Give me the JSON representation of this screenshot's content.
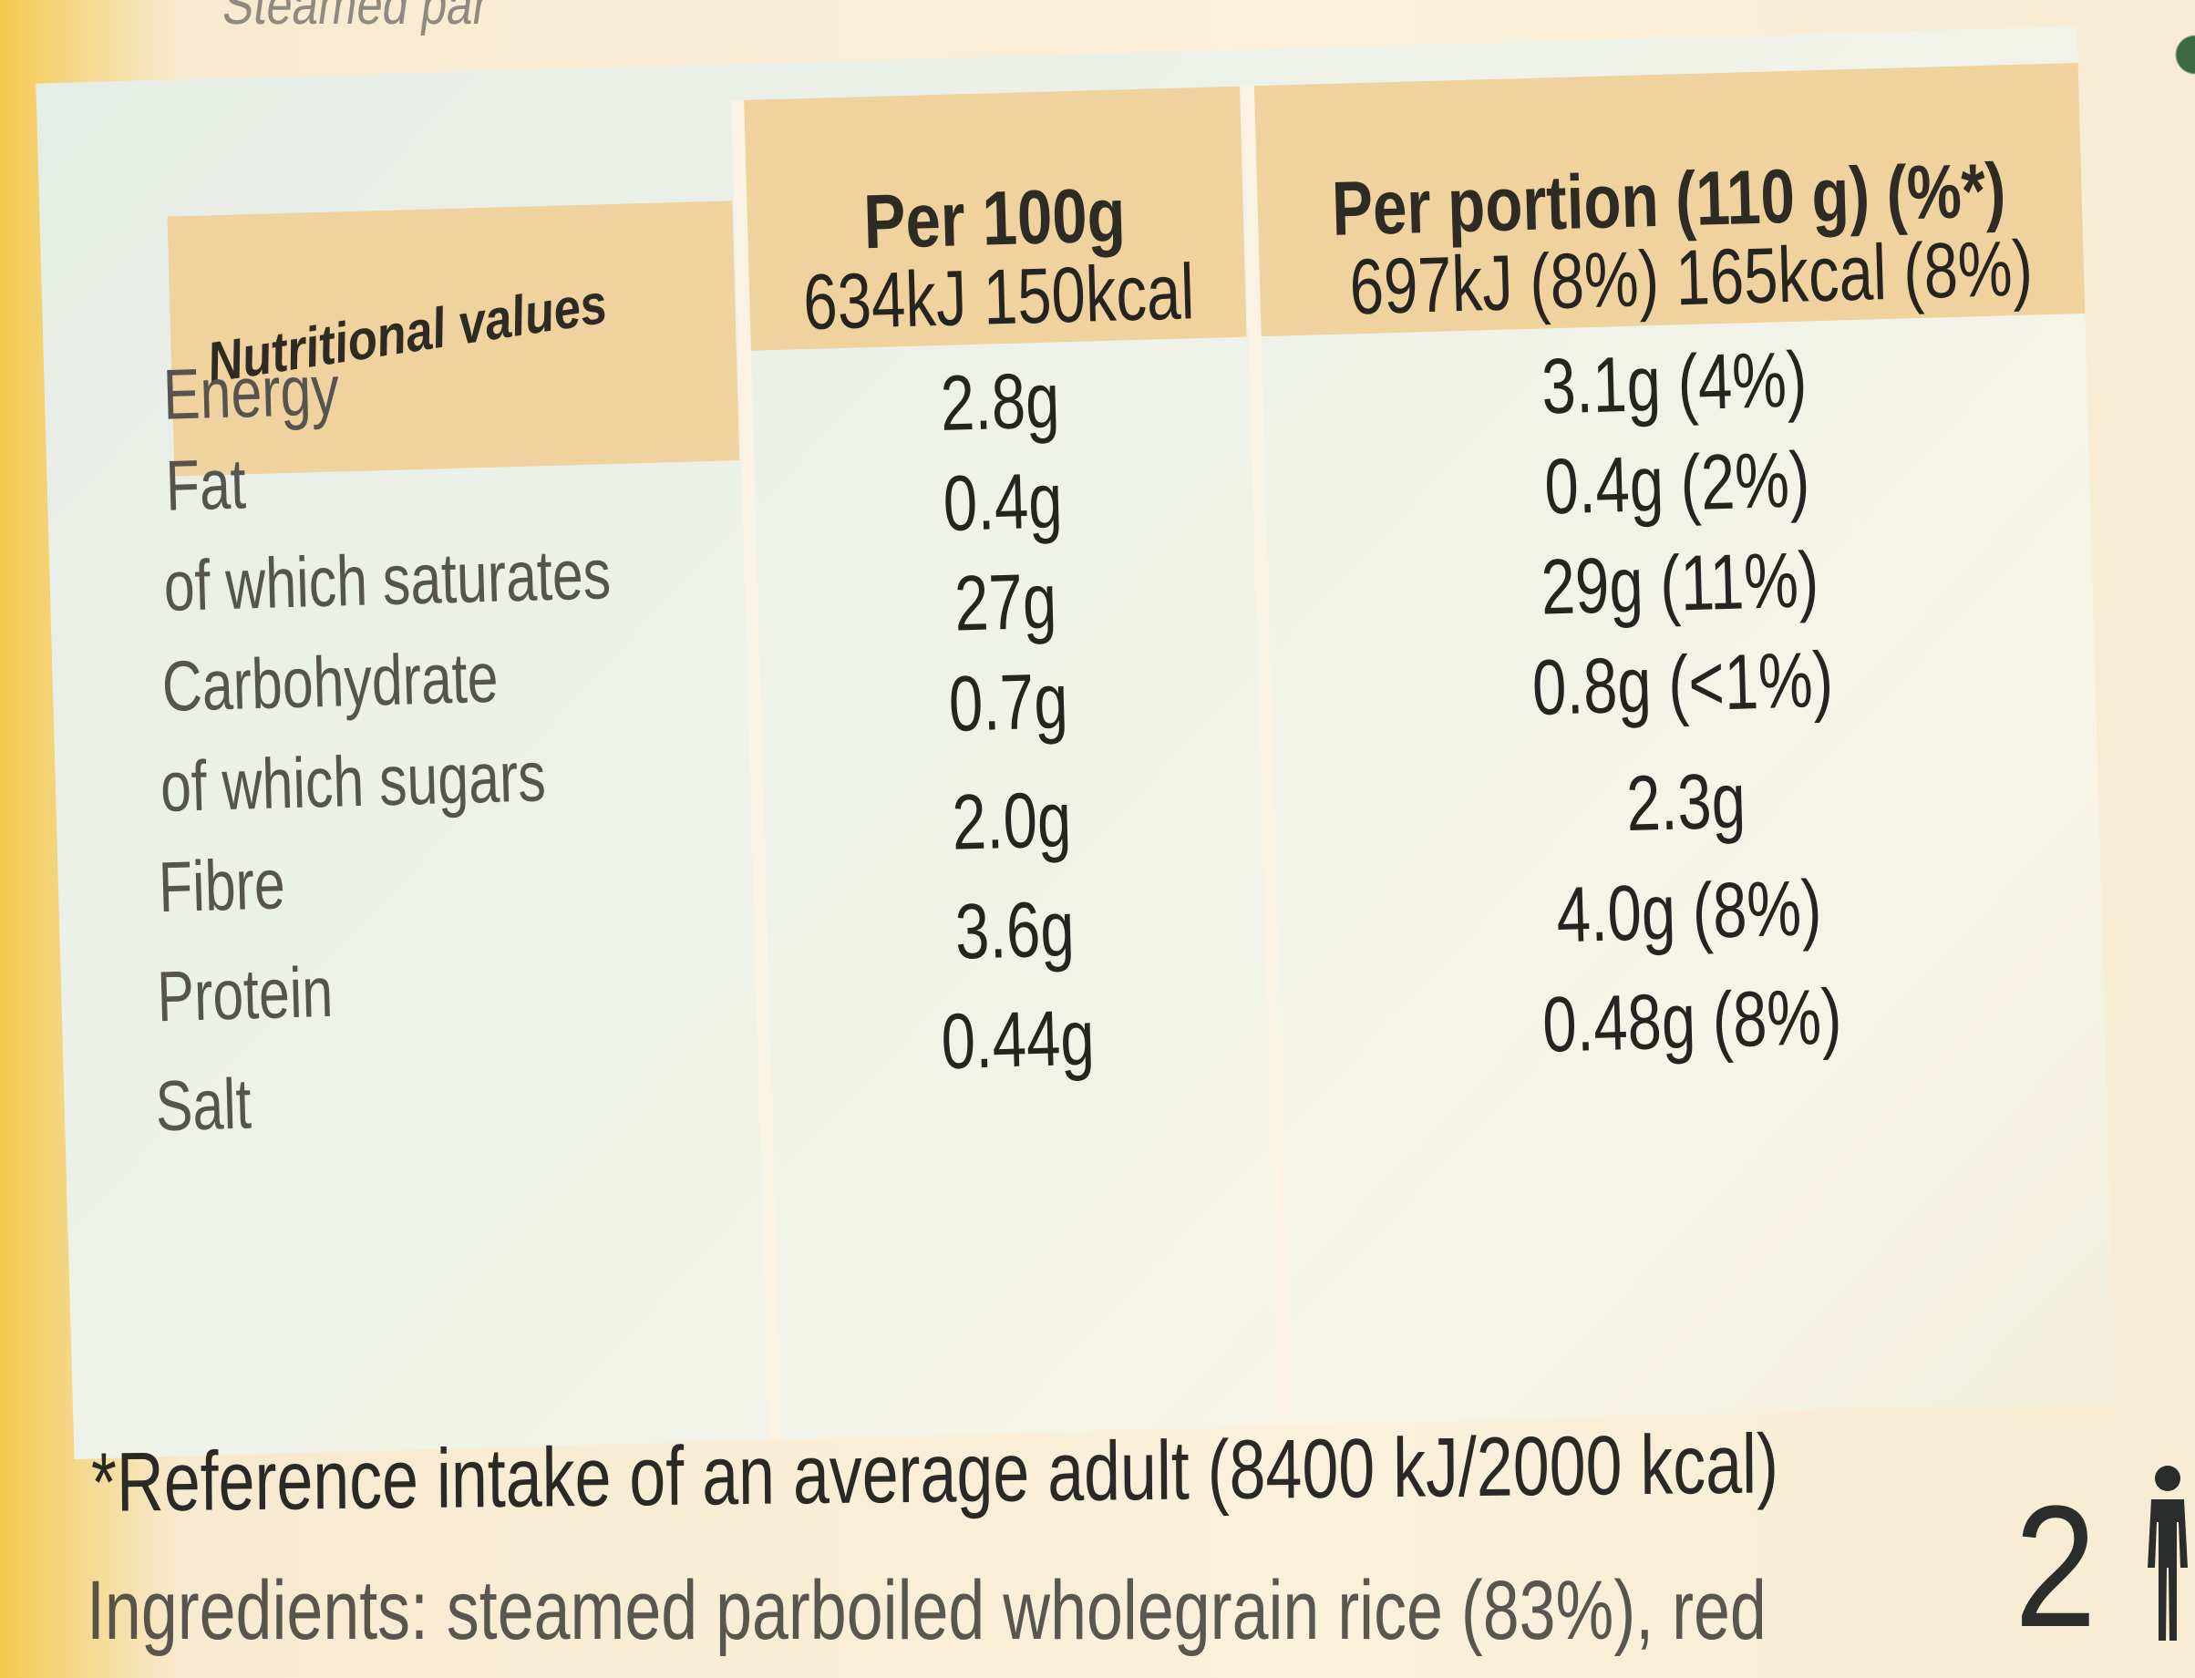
{
  "header_partial_text": "Steamed par",
  "table": {
    "headers": {
      "label": "Nutritional values",
      "per_100g": "Per 100g",
      "per_portion": "Per portion (110 g) (%*)"
    },
    "rows": [
      {
        "label": "Energy",
        "per_100g": "634kJ 150kcal",
        "per_portion": "697kJ (8%) 165kcal (8%)"
      },
      {
        "label": "Fat",
        "per_100g": "2.8g",
        "per_portion": "3.1g (4%)"
      },
      {
        "label": "of which saturates",
        "per_100g": "0.4g",
        "per_portion": "0.4g (2%)"
      },
      {
        "label": "Carbohydrate",
        "per_100g": "27g",
        "per_portion": "29g (11%)"
      },
      {
        "label": "of which sugars",
        "per_100g": "0.7g",
        "per_portion": "0.8g (<1%)"
      },
      {
        "label": "Fibre",
        "per_100g": "2.0g",
        "per_portion": "2.3g"
      },
      {
        "label": "Protein",
        "per_100g": "3.6g",
        "per_portion": "4.0g (8%)"
      },
      {
        "label": "Salt",
        "per_100g": "0.44g",
        "per_portion": "0.48g (8%)"
      }
    ]
  },
  "footnote": "*Reference intake of an average adult (8400 kJ/2000 kcal)",
  "ingredients_partial": "Ingredients: steamed parboiled wholegrain rice (83%), red",
  "portions": {
    "count": "2",
    "icon": "person-icon"
  },
  "colors": {
    "header_bg": "#f0d29e",
    "table_bg": "#eef2e9",
    "pack_yellow": "#f2c94f",
    "text_dark": "#262420"
  }
}
